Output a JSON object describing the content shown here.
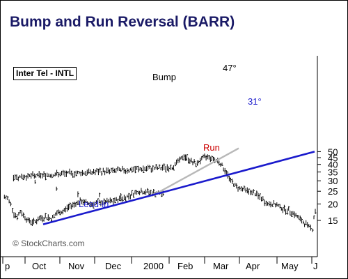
{
  "chart_data": {
    "type": "bar",
    "title": "Bump and Run Reversal (BARR)",
    "ticker_label": "Inter Tel - INTL",
    "copyright": "© StockCharts.com",
    "y_scale": "log",
    "y_axis_position": "right",
    "ylim": [
      11,
      55
    ],
    "y_ticks": [
      15,
      20,
      25,
      30,
      35,
      40,
      45,
      50
    ],
    "x_tick_labels": [
      "p",
      "Oct",
      "Nov",
      "Dec",
      "2000",
      "Feb",
      "Mar",
      "Apr",
      "May",
      "J"
    ],
    "grid": false,
    "legend": "none",
    "colors": {
      "bars": "#000000",
      "trendline": "#1a1acc",
      "bump_line": "#b8b8b8",
      "title": "#1a1a66",
      "run_text": "#cc0000"
    },
    "annotations": {
      "lead_in": "Lead-in",
      "bump": "Bump",
      "run": "Run",
      "angle_steep": "47°",
      "angle_trend": "31°"
    },
    "trendline": {
      "start": [
        "Oct",
        14.0
      ],
      "end": [
        "J",
        50.0
      ]
    },
    "bump_line": {
      "start": [
        "2000",
        23.0
      ],
      "end": [
        "Mar",
        53.0
      ]
    },
    "price_path": [
      [
        "p",
        22.5
      ],
      [
        "p",
        22
      ],
      [
        "p",
        20
      ],
      [
        "p",
        17
      ],
      [
        "p",
        16
      ],
      [
        "p",
        17.5
      ],
      [
        "p",
        16.5
      ],
      [
        "Oct",
        15
      ],
      [
        "Oct",
        14.5
      ],
      [
        "Oct",
        15.5
      ],
      [
        "Oct",
        16
      ],
      [
        "Oct",
        15.5
      ],
      [
        "Oct",
        17
      ],
      [
        "Nov",
        17.5
      ],
      [
        "Nov",
        19
      ],
      [
        "Nov",
        20
      ],
      [
        "Nov",
        21
      ],
      [
        "Nov",
        20.5
      ],
      [
        "Nov",
        20
      ],
      [
        "Dec",
        20.5
      ],
      [
        "Dec",
        21
      ],
      [
        "Dec",
        22.5
      ],
      [
        "Dec",
        25
      ],
      [
        "Dec",
        24.5
      ],
      [
        "Dec",
        24
      ],
      [
        "2000",
        23.5
      ],
      [
        "2000",
        23
      ],
      [
        "2000",
        24
      ],
      [
        "2000",
        26
      ],
      [
        "2000",
        30
      ],
      [
        "2000",
        32
      ],
      [
        "Feb",
        38
      ],
      [
        "Feb",
        42
      ],
      [
        "Feb",
        46
      ],
      [
        "Feb",
        43
      ],
      [
        "Feb",
        40
      ],
      [
        "Feb",
        44
      ],
      [
        "Mar",
        46
      ],
      [
        "Mar",
        44
      ],
      [
        "Mar",
        42
      ],
      [
        "Mar",
        36
      ],
      [
        "Mar",
        30
      ],
      [
        "Mar",
        27
      ],
      [
        "Apr",
        26
      ],
      [
        "Apr",
        25
      ],
      [
        "Apr",
        24
      ],
      [
        "Apr",
        22
      ],
      [
        "Apr",
        20
      ],
      [
        "Apr",
        20
      ],
      [
        "May",
        19
      ],
      [
        "May",
        18
      ],
      [
        "May",
        17.5
      ],
      [
        "May",
        16
      ],
      [
        "May",
        14.5
      ],
      [
        "May",
        13.5
      ],
      [
        "J",
        13
      ],
      [
        "J",
        16
      ],
      [
        "J",
        17.5
      ],
      [
        "J",
        16.5
      ]
    ]
  }
}
